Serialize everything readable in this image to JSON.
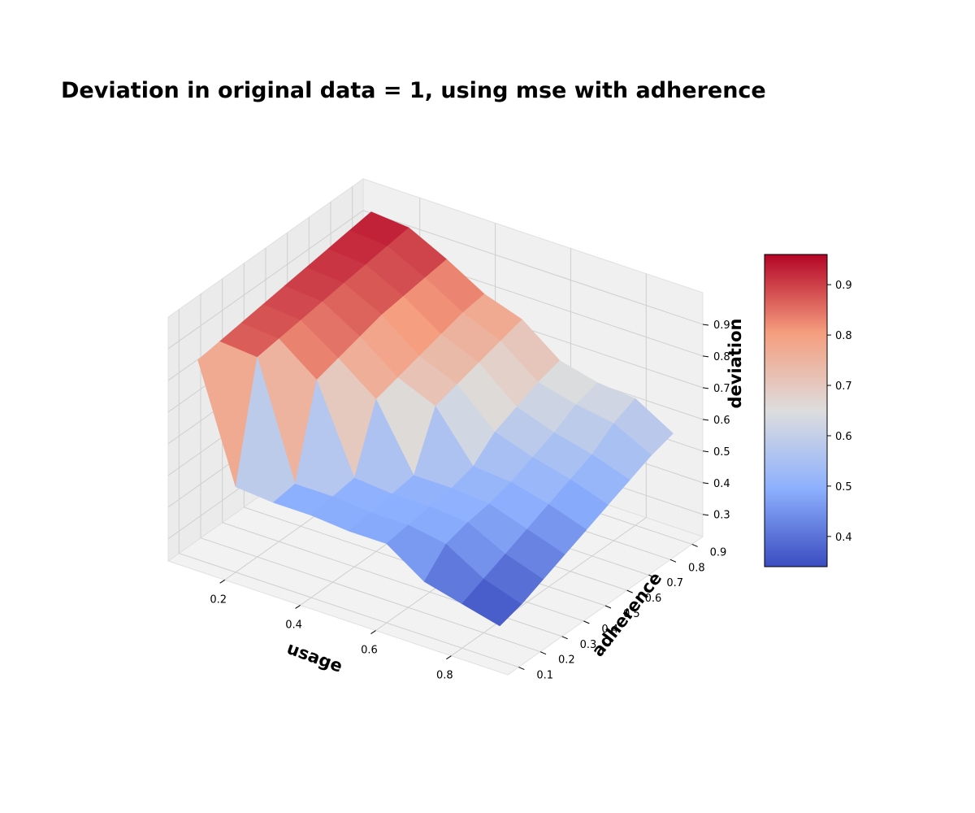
{
  "chart_data": {
    "type": "surface3d",
    "title": "Deviation in original data = 1, using mse with adherence",
    "xlabel": "usage",
    "ylabel": "adherence",
    "zlabel": "deviation",
    "colormap": "coolwarm",
    "grid": true,
    "colorbar": {
      "range": [
        0.34,
        0.96
      ],
      "ticks": [
        "0.4",
        "0.5",
        "0.6",
        "0.7",
        "0.8",
        "0.9"
      ]
    },
    "x": [
      0.1,
      0.2,
      0.3,
      0.4,
      0.5,
      0.6,
      0.7,
      0.8,
      0.9
    ],
    "y": [
      0.1,
      0.2,
      0.3,
      0.4,
      0.5,
      0.6,
      0.7,
      0.8,
      0.9
    ],
    "xlim": [
      0.05,
      0.95
    ],
    "ylim": [
      0.05,
      0.95
    ],
    "zlim": [
      0.23,
      1.0
    ],
    "xticks": [
      "0.2",
      "0.4",
      "0.6",
      "0.8"
    ],
    "yticks": [
      "0.1",
      "0.2",
      "0.3",
      "0.4",
      "0.5",
      "0.6",
      "0.7",
      "0.8",
      "0.9"
    ],
    "zticks": [
      "0.3",
      "0.4",
      "0.5",
      "0.6",
      "0.7",
      "0.8",
      "0.9"
    ],
    "z": [
      [
        0.86,
        0.87,
        0.88,
        0.89,
        0.9,
        0.91,
        0.92,
        0.93,
        0.94
      ],
      [
        0.5,
        0.86,
        0.87,
        0.88,
        0.89,
        0.9,
        0.91,
        0.92,
        0.93
      ],
      [
        0.49,
        0.5,
        0.78,
        0.8,
        0.82,
        0.84,
        0.85,
        0.86,
        0.87
      ],
      [
        0.49,
        0.5,
        0.51,
        0.71,
        0.73,
        0.75,
        0.77,
        0.79,
        0.8
      ],
      [
        0.48,
        0.49,
        0.5,
        0.51,
        0.68,
        0.7,
        0.72,
        0.74,
        0.76
      ],
      [
        0.48,
        0.49,
        0.5,
        0.51,
        0.53,
        0.59,
        0.62,
        0.65,
        0.67
      ],
      [
        0.4,
        0.47,
        0.49,
        0.5,
        0.52,
        0.55,
        0.58,
        0.62,
        0.64
      ],
      [
        0.37,
        0.4,
        0.43,
        0.46,
        0.49,
        0.52,
        0.55,
        0.6,
        0.63
      ],
      [
        0.34,
        0.36,
        0.39,
        0.42,
        0.45,
        0.48,
        0.51,
        0.54,
        0.56
      ]
    ]
  }
}
